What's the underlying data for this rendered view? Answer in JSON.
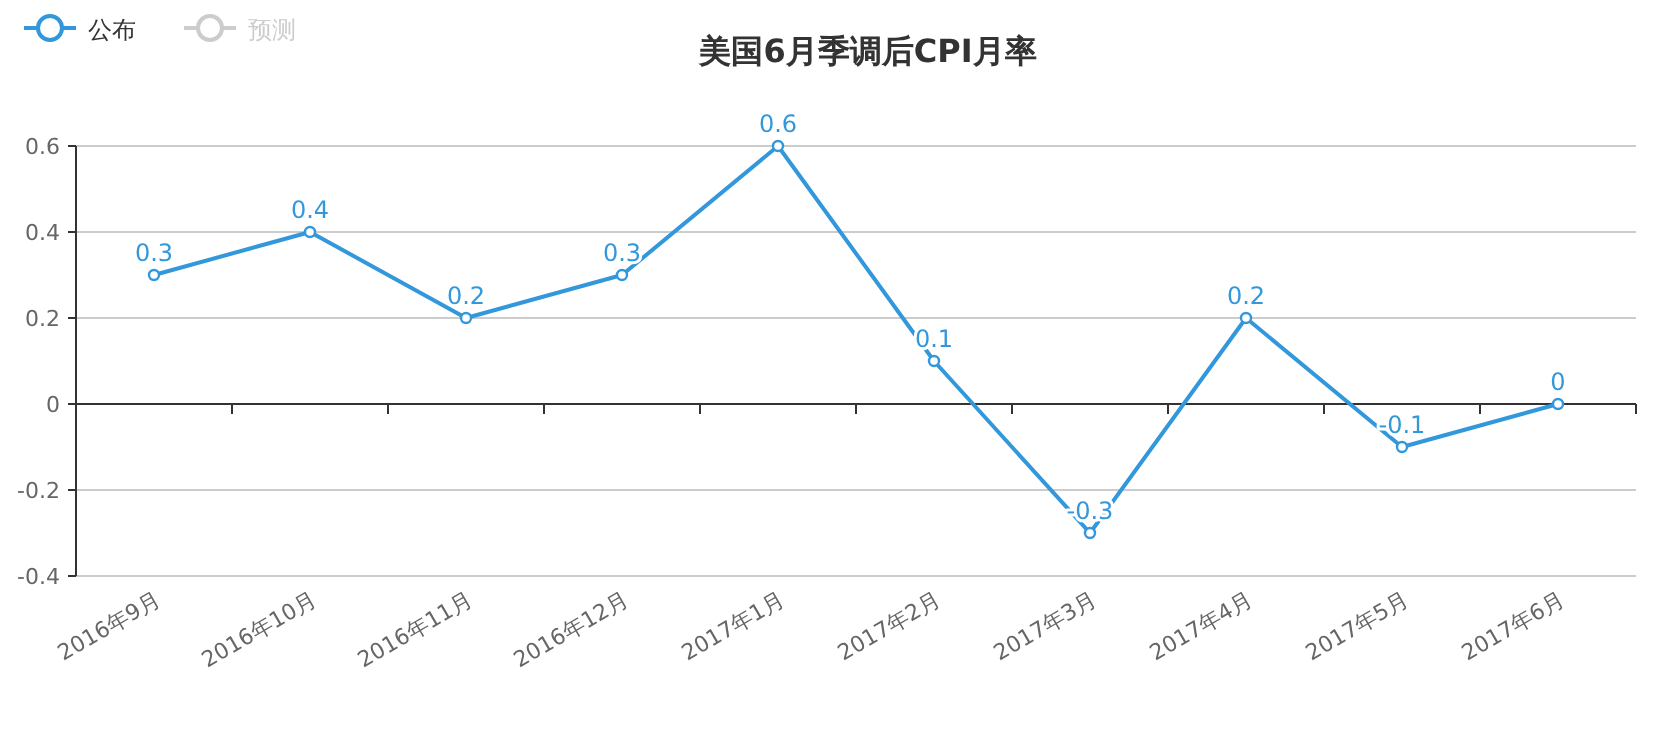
{
  "chart_data": {
    "type": "line",
    "title": "美国6月季调后CPI月率",
    "categories": [
      "2016年9月",
      "2016年10月",
      "2016年11月",
      "2016年12月",
      "2017年1月",
      "2017年2月",
      "2017年3月",
      "2017年4月",
      "2017年5月",
      "2017年6月"
    ],
    "series": [
      {
        "name": "公布",
        "color": "#3398db",
        "values": [
          0.3,
          0.4,
          0.2,
          0.3,
          0.6,
          0.1,
          -0.3,
          0.2,
          -0.1,
          0
        ]
      },
      {
        "name": "预测",
        "color": "#cccccc",
        "values": [
          null,
          null,
          null,
          null,
          null,
          null,
          null,
          null,
          null,
          null
        ]
      }
    ],
    "ylim": [
      -0.4,
      0.6
    ],
    "yticks": [
      -0.4,
      -0.2,
      0,
      0.2,
      0.4,
      0.6
    ],
    "grid": "y",
    "legend": "top left",
    "marker": "circle",
    "data_labels": true
  }
}
